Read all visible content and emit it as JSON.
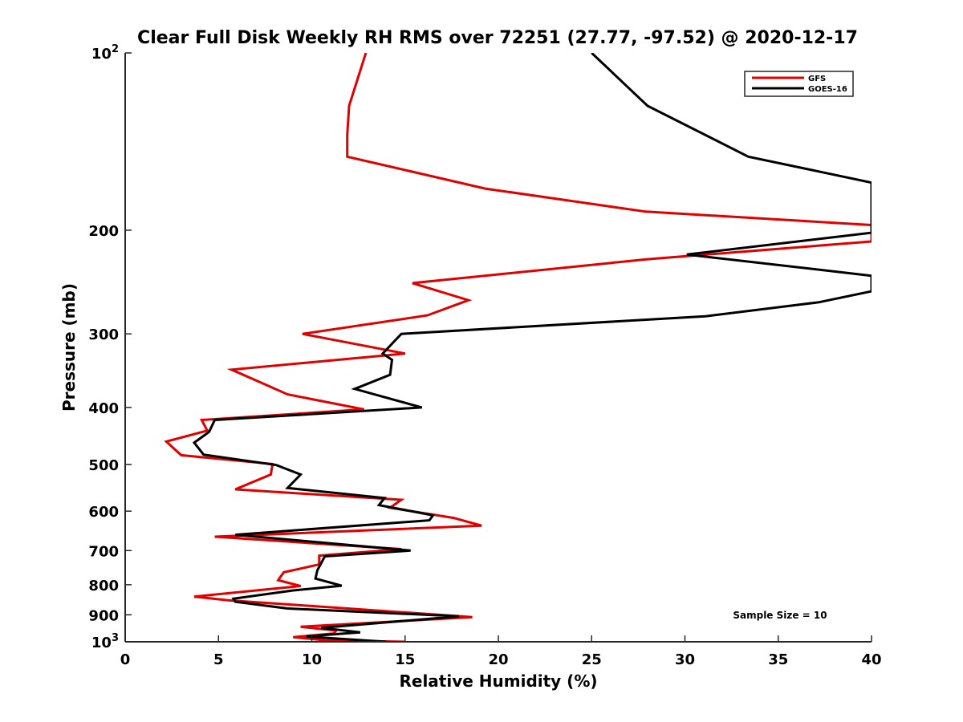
{
  "chart_data": {
    "type": "line",
    "title": "Clear Full Disk Weekly RH RMS over 72251 (27.77, -97.52) @ 2020-12-17",
    "xlabel": "Relative Humidity (%)",
    "ylabel": "Pressure (mb)",
    "xlim": [
      0,
      40
    ],
    "ylim": [
      100,
      1000
    ],
    "yscale": "log",
    "yaxis_reversed": true,
    "grid": false,
    "legend_position": "top-right",
    "x_ticks": [
      "0",
      "5",
      "10",
      "15",
      "20",
      "25",
      "30",
      "35",
      "40"
    ],
    "y_ticks": [
      {
        "value": 100,
        "label": "10",
        "exp": "2"
      },
      {
        "value": 200,
        "label": "200"
      },
      {
        "value": 300,
        "label": "300"
      },
      {
        "value": 400,
        "label": "400"
      },
      {
        "value": 500,
        "label": "500"
      },
      {
        "value": 600,
        "label": "600"
      },
      {
        "value": 700,
        "label": "700"
      },
      {
        "value": 800,
        "label": "800"
      },
      {
        "value": 900,
        "label": "900"
      },
      {
        "value": 1000,
        "label": "10",
        "exp": "3"
      }
    ],
    "annotation": "Sample Size = 10",
    "series": [
      {
        "name": "GFS",
        "color": "#e00000",
        "points": [
          [
            12.9,
            100
          ],
          [
            12.0,
            123
          ],
          [
            11.9,
            138
          ],
          [
            11.9,
            150
          ],
          [
            19.3,
            170
          ],
          [
            27.9,
            186
          ],
          [
            40,
            196
          ],
          [
            40,
            209
          ],
          [
            28.0,
            224
          ],
          [
            15.4,
            246
          ],
          [
            18.4,
            263
          ],
          [
            16.2,
            279
          ],
          [
            9.5,
            300
          ],
          [
            15.0,
            324
          ],
          [
            5.7,
            345
          ],
          [
            7.2,
            362
          ],
          [
            8.7,
            380
          ],
          [
            12.8,
            403
          ],
          [
            4.1,
            420
          ],
          [
            4.4,
            438
          ],
          [
            2.2,
            457
          ],
          [
            3.0,
            482
          ],
          [
            7.9,
            499
          ],
          [
            7.8,
            520
          ],
          [
            5.9,
            551
          ],
          [
            14.8,
            574
          ],
          [
            14.2,
            592
          ],
          [
            17.6,
            616
          ],
          [
            19.1,
            635
          ],
          [
            4.8,
            663
          ],
          [
            14.8,
            696
          ],
          [
            10.4,
            714
          ],
          [
            10.4,
            739
          ],
          [
            8.5,
            762
          ],
          [
            8.2,
            786
          ],
          [
            9.4,
            804
          ],
          [
            3.7,
            838
          ],
          [
            5.5,
            850
          ],
          [
            18.6,
            908
          ],
          [
            9.4,
            943
          ],
          [
            11.3,
            957
          ],
          [
            11.2,
            968
          ],
          [
            9.0,
            982
          ],
          [
            10.7,
            994
          ],
          [
            15.0,
            1000
          ]
        ]
      },
      {
        "name": "GOES-16",
        "color": "#000000",
        "points": [
          [
            25.0,
            100
          ],
          [
            28.0,
            123
          ],
          [
            33.4,
            150
          ],
          [
            40,
            166
          ],
          [
            40,
            202
          ],
          [
            30.1,
            220
          ],
          [
            40,
            239
          ],
          [
            40,
            254
          ],
          [
            37.2,
            265
          ],
          [
            31.1,
            280
          ],
          [
            14.8,
            300
          ],
          [
            13.8,
            324
          ],
          [
            14.3,
            332
          ],
          [
            14.2,
            352
          ],
          [
            12.3,
            372
          ],
          [
            15.9,
            400
          ],
          [
            4.8,
            420
          ],
          [
            4.5,
            440
          ],
          [
            3.7,
            459
          ],
          [
            4.2,
            481
          ],
          [
            8.1,
            501
          ],
          [
            9.4,
            520
          ],
          [
            8.7,
            548
          ],
          [
            13.9,
            570
          ],
          [
            13.6,
            586
          ],
          [
            16.5,
            610
          ],
          [
            16.3,
            622
          ],
          [
            5.9,
            658
          ],
          [
            15.3,
            700
          ],
          [
            10.7,
            716
          ],
          [
            10.3,
            756
          ],
          [
            10.2,
            781
          ],
          [
            11.6,
            803
          ],
          [
            9.0,
            818
          ],
          [
            5.8,
            845
          ],
          [
            5.9,
            855
          ],
          [
            8.7,
            878
          ],
          [
            17.9,
            905
          ],
          [
            10.5,
            947
          ],
          [
            12.6,
            964
          ],
          [
            9.7,
            979
          ],
          [
            10.6,
            984
          ],
          [
            14.0,
            1000
          ]
        ]
      }
    ]
  }
}
